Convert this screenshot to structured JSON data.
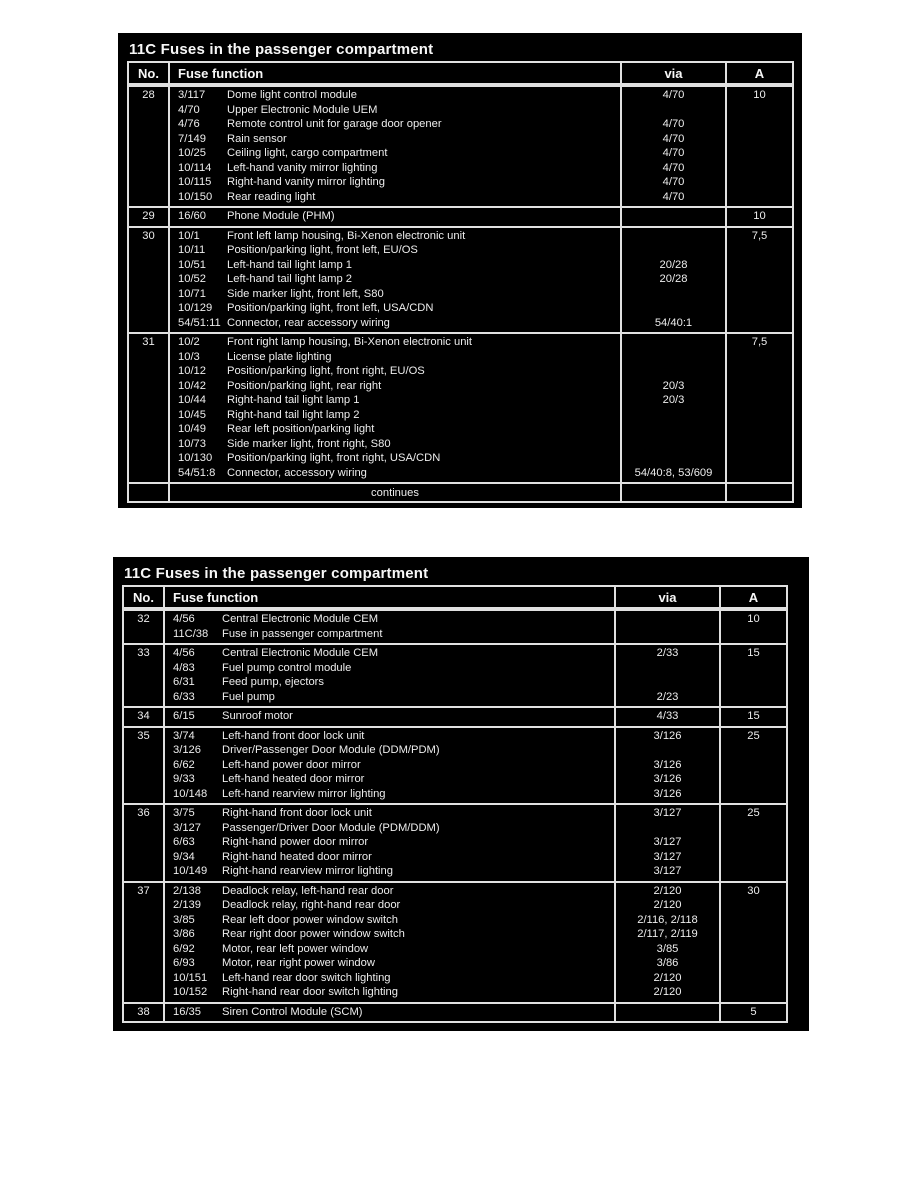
{
  "colors": {
    "table_bg": "#000000",
    "text": "#ededed",
    "border": "#e0e0e0",
    "page_bg": "#ffffff"
  },
  "tables": [
    {
      "title": "11C Fuses in the passenger compartment",
      "headers": {
        "no": "No.",
        "function": "Fuse function",
        "via": "via",
        "amp": "A"
      },
      "rows": [
        {
          "no": "28",
          "amp": "10",
          "lines": [
            {
              "code": "3/117",
              "desc": "Dome light control module",
              "via": "4/70"
            },
            {
              "code": "4/70",
              "desc": "Upper Electronic Module UEM",
              "via": ""
            },
            {
              "code": "4/76",
              "desc": "Remote control unit for garage door opener",
              "via": "4/70"
            },
            {
              "code": "7/149",
              "desc": "Rain sensor",
              "via": "4/70"
            },
            {
              "code": "10/25",
              "desc": "Ceiling light, cargo compartment",
              "via": "4/70"
            },
            {
              "code": "10/114",
              "desc": "Left-hand vanity mirror lighting",
              "via": "4/70"
            },
            {
              "code": "10/115",
              "desc": "Right-hand vanity mirror lighting",
              "via": "4/70"
            },
            {
              "code": "10/150",
              "desc": "Rear reading light",
              "via": "4/70"
            }
          ]
        },
        {
          "no": "29",
          "amp": "10",
          "lines": [
            {
              "code": "16/60",
              "desc": "Phone Module (PHM)",
              "via": ""
            }
          ]
        },
        {
          "no": "30",
          "amp": "7,5",
          "lines": [
            {
              "code": "10/1",
              "desc": "Front left lamp housing, Bi-Xenon electronic unit",
              "via": ""
            },
            {
              "code": "10/11",
              "desc": "Position/parking light, front left, EU/OS",
              "via": ""
            },
            {
              "code": "10/51",
              "desc": "Left-hand tail light lamp 1",
              "via": "20/28"
            },
            {
              "code": "10/52",
              "desc": "Left-hand tail light lamp 2",
              "via": "20/28"
            },
            {
              "code": "10/71",
              "desc": "Side marker light, front left, S80",
              "via": ""
            },
            {
              "code": "10/129",
              "desc": "Position/parking light, front left, USA/CDN",
              "via": ""
            },
            {
              "code": "54/51:11",
              "desc": "Connector, rear accessory wiring",
              "via": "54/40:1"
            }
          ]
        },
        {
          "no": "31",
          "amp": "7,5",
          "lines": [
            {
              "code": "10/2",
              "desc": "Front right lamp housing, Bi-Xenon electronic unit",
              "via": ""
            },
            {
              "code": "10/3",
              "desc": "License plate lighting",
              "via": ""
            },
            {
              "code": "10/12",
              "desc": "Position/parking light, front right, EU/OS",
              "via": ""
            },
            {
              "code": "10/42",
              "desc": "Position/parking light, rear right",
              "via": "20/3"
            },
            {
              "code": "10/44",
              "desc": "Right-hand tail light lamp 1",
              "via": "20/3"
            },
            {
              "code": "10/45",
              "desc": "Right-hand tail light lamp 2",
              "via": ""
            },
            {
              "code": "10/49",
              "desc": "Rear left position/parking light",
              "via": ""
            },
            {
              "code": "10/73",
              "desc": "Side marker light, front right, S80",
              "via": ""
            },
            {
              "code": "10/130",
              "desc": "Position/parking light, front right, USA/CDN",
              "via": ""
            },
            {
              "code": "54/51:8",
              "desc": "Connector, accessory wiring",
              "via": "54/40:8, 53/609"
            }
          ]
        }
      ],
      "footer": "continues"
    },
    {
      "title": "11C Fuses in the passenger compartment",
      "headers": {
        "no": "No.",
        "function": "Fuse function",
        "via": "via",
        "amp": "A"
      },
      "rows": [
        {
          "no": "32",
          "amp": "10",
          "lines": [
            {
              "code": "4/56",
              "desc": "Central Electronic Module CEM",
              "via": ""
            },
            {
              "code": "11C/38",
              "desc": "Fuse in passenger compartment",
              "via": ""
            }
          ]
        },
        {
          "no": "33",
          "amp": "15",
          "lines": [
            {
              "code": "4/56",
              "desc": "Central Electronic Module CEM",
              "via": "2/33"
            },
            {
              "code": "4/83",
              "desc": "Fuel pump control module",
              "via": ""
            },
            {
              "code": "6/31",
              "desc": "Feed pump, ejectors",
              "via": ""
            },
            {
              "code": "6/33",
              "desc": "Fuel pump",
              "via": "2/23"
            }
          ]
        },
        {
          "no": "34",
          "amp": "15",
          "lines": [
            {
              "code": "6/15",
              "desc": "Sunroof motor",
              "via": "4/33"
            }
          ]
        },
        {
          "no": "35",
          "amp": "25",
          "lines": [
            {
              "code": "3/74",
              "desc": "Left-hand front door lock unit",
              "via": "3/126"
            },
            {
              "code": "3/126",
              "desc": "Driver/Passenger Door Module (DDM/PDM)",
              "via": ""
            },
            {
              "code": "6/62",
              "desc": "Left-hand power door mirror",
              "via": "3/126"
            },
            {
              "code": "9/33",
              "desc": "Left-hand heated door mirror",
              "via": "3/126"
            },
            {
              "code": "10/148",
              "desc": "Left-hand rearview mirror lighting",
              "via": "3/126"
            }
          ]
        },
        {
          "no": "36",
          "amp": "25",
          "lines": [
            {
              "code": "3/75",
              "desc": "Right-hand front door lock unit",
              "via": "3/127"
            },
            {
              "code": "3/127",
              "desc": "Passenger/Driver Door Module (PDM/DDM)",
              "via": ""
            },
            {
              "code": "6/63",
              "desc": "Right-hand power door mirror",
              "via": "3/127"
            },
            {
              "code": "9/34",
              "desc": "Right-hand heated door mirror",
              "via": "3/127"
            },
            {
              "code": "10/149",
              "desc": "Right-hand rearview mirror lighting",
              "via": "3/127"
            }
          ]
        },
        {
          "no": "37",
          "amp": "30",
          "lines": [
            {
              "code": "2/138",
              "desc": "Deadlock relay, left-hand rear door",
              "via": "2/120"
            },
            {
              "code": "2/139",
              "desc": "Deadlock relay, right-hand rear door",
              "via": "2/120"
            },
            {
              "code": "3/85",
              "desc": "Rear left door power window switch",
              "via": "2/116, 2/118"
            },
            {
              "code": "3/86",
              "desc": "Rear right door power window switch",
              "via": "2/117, 2/119"
            },
            {
              "code": "6/92",
              "desc": "Motor, rear left power window",
              "via": "3/85"
            },
            {
              "code": "6/93",
              "desc": "Motor, rear right power window",
              "via": "3/86"
            },
            {
              "code": "10/151",
              "desc": "Left-hand rear door switch lighting",
              "via": "2/120"
            },
            {
              "code": "10/152",
              "desc": "Right-hand rear door switch lighting",
              "via": "2/120"
            }
          ]
        },
        {
          "no": "38",
          "amp": "5",
          "lines": [
            {
              "code": "16/35",
              "desc": "Siren Control Module (SCM)",
              "via": ""
            }
          ]
        }
      ],
      "footer": null
    }
  ]
}
